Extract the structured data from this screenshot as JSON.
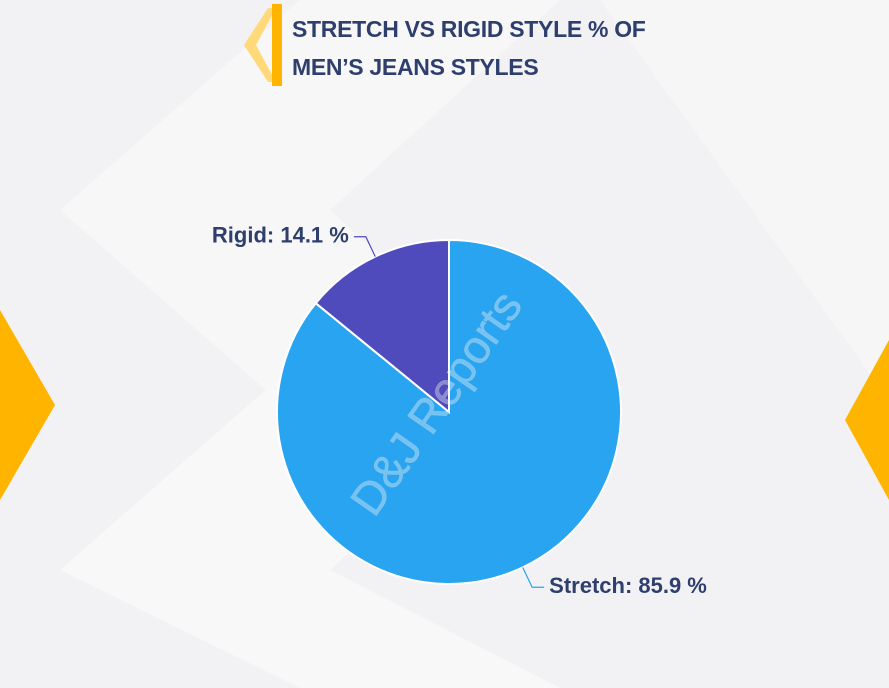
{
  "chart_data": {
    "type": "pie",
    "title": "STRETCH VS RIGID STYLE % OF MEN’S JEANS STYLES",
    "values": [
      85.9,
      14.1
    ],
    "value_labels": [
      "Stretch: 85.9 %",
      "Rigid: 14.1 %"
    ],
    "colors": [
      "#29a4f0",
      "#4f4bbd"
    ],
    "watermark": "D&J Reports"
  }
}
